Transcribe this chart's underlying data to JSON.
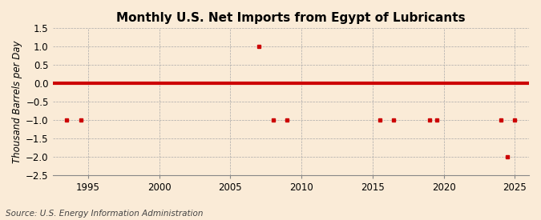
{
  "title": "Monthly U.S. Net Imports from Egypt of Lubricants",
  "ylabel": "Thousand Barrels per Day",
  "source": "Source: U.S. Energy Information Administration",
  "background_color": "#faebd7",
  "plot_bg_color": "#faebd7",
  "xlim": [
    1992.5,
    2026.0
  ],
  "ylim": [
    -2.5,
    1.5
  ],
  "yticks": [
    -2.5,
    -2.0,
    -1.5,
    -1.0,
    -0.5,
    0.0,
    0.5,
    1.0,
    1.5
  ],
  "xticks": [
    1995,
    2000,
    2005,
    2010,
    2015,
    2020,
    2025
  ],
  "line_color": "#cc0000",
  "marker_color": "#cc0000",
  "grid_color": "#aaaaaa",
  "data_x": [
    1993.5,
    1994.5,
    2007.0,
    2008.0,
    2009.0,
    2015.5,
    2016.5,
    2019.0,
    2019.5,
    2024.0,
    2024.5,
    2025.0
  ],
  "data_y": [
    -1.0,
    -1.0,
    1.0,
    -1.0,
    -1.0,
    -1.0,
    -1.0,
    -1.0,
    -1.0,
    -1.0,
    -2.0,
    -1.0
  ],
  "zero_line_y": 0.0,
  "title_fontsize": 11,
  "label_fontsize": 8.5,
  "tick_fontsize": 8.5,
  "source_fontsize": 7.5
}
